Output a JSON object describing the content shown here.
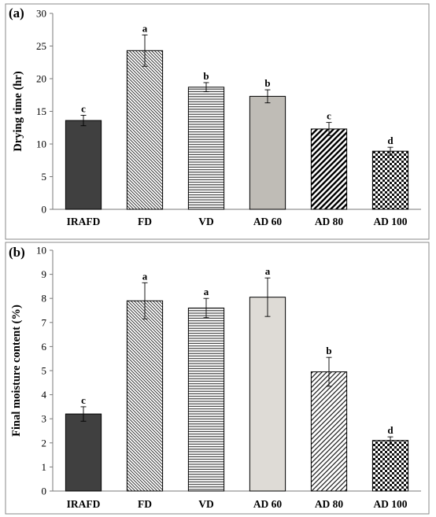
{
  "chart_data": [
    {
      "type": "bar",
      "panel_label": "(a)",
      "categories": [
        "IRAFD",
        "FD",
        "VD",
        "AD 60",
        "AD 80",
        "AD 100"
      ],
      "values": [
        13.6,
        24.3,
        18.7,
        17.3,
        12.3,
        8.9
      ],
      "error": [
        0.8,
        2.4,
        0.7,
        1.0,
        1.0,
        0.6
      ],
      "significance": [
        "c",
        "a",
        "b",
        "b",
        "c",
        "d"
      ],
      "ylabel": "Drying time (hr)",
      "xlabel": "",
      "ylim": [
        0,
        30
      ],
      "yticks": [
        0,
        5,
        10,
        15,
        20,
        25,
        30
      ],
      "patterns": [
        "solid-dark",
        "diag-back-dense",
        "horiz-lines",
        "solid-gray",
        "diag-fwd-thick",
        "checker"
      ],
      "grid": false
    },
    {
      "type": "bar",
      "panel_label": "(b)",
      "categories": [
        "IRAFD",
        "FD",
        "VD",
        "AD 60",
        "AD 80",
        "AD 100"
      ],
      "values": [
        3.2,
        7.9,
        7.6,
        8.05,
        4.95,
        2.1
      ],
      "error": [
        0.3,
        0.75,
        0.4,
        0.8,
        0.6,
        0.15
      ],
      "significance": [
        "c",
        "a",
        "a",
        "a",
        "b",
        "d"
      ],
      "ylabel": "Final moisture content (%)",
      "xlabel": "",
      "ylim": [
        0,
        10
      ],
      "yticks": [
        0,
        1,
        2,
        3,
        4,
        5,
        6,
        7,
        8,
        9,
        10
      ],
      "patterns": [
        "solid-dark",
        "diag-back-dense",
        "horiz-lines",
        "solid-light",
        "diag-fwd-thin",
        "checker"
      ],
      "grid": false
    }
  ]
}
